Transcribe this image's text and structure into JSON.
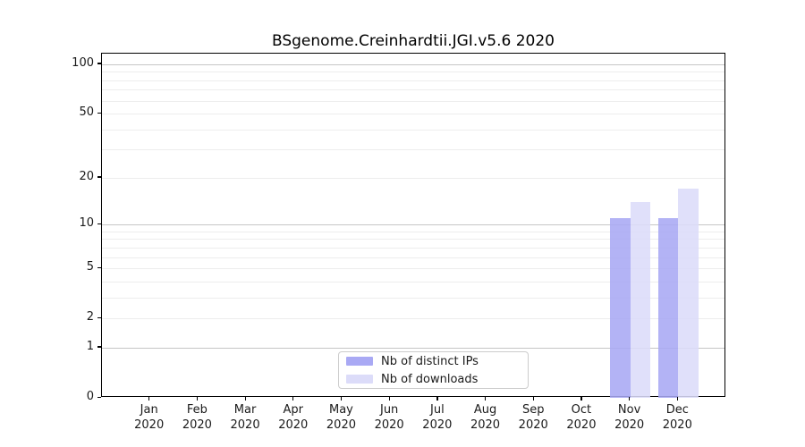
{
  "title": "BSgenome.Creinhardtii.JGI.v5.6 2020",
  "chart_data": {
    "type": "bar",
    "title": "BSgenome.Creinhardtii.JGI.v5.6 2020",
    "categories": [
      "Jan",
      "Feb",
      "Mar",
      "Apr",
      "May",
      "Jun",
      "Jul",
      "Aug",
      "Sep",
      "Oct",
      "Nov",
      "Dec"
    ],
    "category_year": "2020",
    "series": [
      {
        "name": "Nb of distinct IPs",
        "color": "#a9a9f4",
        "values": [
          0,
          0,
          0,
          0,
          0,
          0,
          0,
          0,
          0,
          0,
          11,
          11
        ]
      },
      {
        "name": "Nb of downloads",
        "color": "#dcdcf9",
        "values": [
          0,
          0,
          0,
          0,
          0,
          0,
          0,
          0,
          0,
          0,
          14,
          17
        ]
      }
    ],
    "xlabel": "",
    "ylabel": "",
    "yscale": "log10(1+x)",
    "yticks": [
      0,
      1,
      2,
      5,
      10,
      20,
      50,
      100
    ],
    "ylim": [
      0,
      116
    ],
    "grid_major": [
      1,
      10,
      100
    ],
    "grid_minor": [
      2,
      3,
      4,
      5,
      6,
      7,
      8,
      9,
      20,
      30,
      40,
      50,
      60,
      70,
      80,
      90
    ],
    "legend_position": "lower center"
  }
}
